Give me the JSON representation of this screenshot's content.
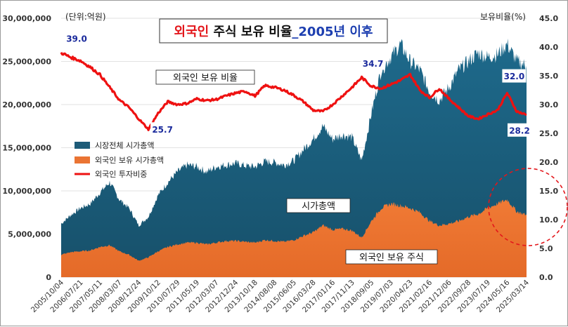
{
  "chart_data": {
    "type": "area",
    "title": {
      "part1": "외국인",
      "part2": " 주식 보유 비율",
      "part3": "_2005년 이후"
    },
    "left_axis_unit": "(단위:억원)",
    "right_axis_unit": "보유비율(%)",
    "ylim_left": [
      0,
      30000000
    ],
    "ylim_right": [
      0,
      45
    ],
    "left_ticks": [
      "0",
      "5,000,000",
      "10,000,000",
      "15,000,000",
      "20,000,000",
      "25,000,000",
      "30,000,000"
    ],
    "right_ticks": [
      "0.0",
      "5.0",
      "10.0",
      "15.0",
      "20.0",
      "25.0",
      "30.0",
      "35.0",
      "40.0",
      "45.0"
    ],
    "x_ticks": [
      "2005/10/04",
      "2006/07/21",
      "2007/05/11",
      "2008/03/07",
      "2008/12/24",
      "2009/10/12",
      "2010/07/29",
      "2011/05/19",
      "2012/03/07",
      "2012/12/24",
      "2013/10/18",
      "2014/08/08",
      "2015/06/05",
      "2016/03/28",
      "2017/01/16",
      "2017/11/13",
      "2018/09/05",
      "2019/07/03",
      "2020/04/23",
      "2021/02/16",
      "2021/12/06",
      "2022/09/28",
      "2023/07/19",
      "2024/05/16",
      "2025/03/14"
    ],
    "legend": [
      {
        "name": "시장전체 시가총액",
        "color": "#1d5b78"
      },
      {
        "name": "외국인 보유 시가총액",
        "color": "#ea7433"
      },
      {
        "name": "외국인 투자비중",
        "color": "#ee1111"
      }
    ],
    "series": [
      {
        "name": "시장전체 시가총액",
        "axis": "left",
        "values": [
          6200000,
          7200000,
          8000000,
          8500000,
          9800000,
          11000000,
          9000000,
          8000000,
          6000000,
          7000000,
          9500000,
          11000000,
          12200000,
          13000000,
          12800000,
          12200000,
          12800000,
          13000000,
          13200000,
          12900000,
          12800000,
          13400000,
          13300000,
          13000000,
          13500000,
          14800000,
          16000000,
          17500000,
          16000000,
          16500000,
          16200000,
          13500000,
          19000000,
          24000000,
          25500000,
          27000000,
          25000000,
          24000000,
          21500000,
          20500000,
          22000000,
          24000000,
          25000000,
          26000000,
          25500000,
          25800000,
          27000000,
          25000000,
          24500000
        ]
      },
      {
        "name": "외국인 보유 시가총액",
        "axis": "left",
        "values": [
          2600000,
          2900000,
          3000000,
          3100000,
          3500000,
          3700000,
          3000000,
          2600000,
          1900000,
          2300000,
          3000000,
          3500000,
          3800000,
          4000000,
          4000000,
          3800000,
          4000000,
          4200000,
          4200000,
          4100000,
          4000000,
          4300000,
          4200000,
          4100000,
          4300000,
          4800000,
          5200000,
          6000000,
          5500000,
          5600000,
          5400000,
          4600000,
          6500000,
          8000000,
          8500000,
          8300000,
          8000000,
          7500000,
          6500000,
          6000000,
          6200000,
          6500000,
          7000000,
          7300000,
          8000000,
          8500000,
          9000000,
          7600000,
          7200000
        ]
      },
      {
        "name": "외국인 투자비중",
        "axis": "right",
        "values": [
          39.0,
          38.2,
          37.6,
          36.5,
          35.2,
          33.0,
          30.8,
          29.5,
          27.5,
          25.7,
          28.5,
          30.5,
          30.0,
          30.2,
          31.0,
          30.7,
          30.9,
          31.5,
          32.0,
          32.3,
          31.5,
          33.3,
          33.0,
          32.5,
          31.6,
          30.5,
          29.0,
          28.8,
          30.0,
          31.5,
          33.0,
          34.7,
          33.2,
          32.8,
          33.5,
          34.2,
          35.2,
          32.5,
          31.2,
          32.8,
          31.0,
          29.5,
          28.0,
          27.5,
          28.3,
          29.0,
          32.0,
          28.8,
          28.2
        ]
      }
    ],
    "point_labels": [
      {
        "index": 0,
        "text": "39.0"
      },
      {
        "index": 9,
        "text": "25.7"
      },
      {
        "index": 31,
        "text": "34.7"
      },
      {
        "index": 46,
        "text": "32.0"
      },
      {
        "index": 48,
        "text": "28.2"
      }
    ],
    "annotations": {
      "ratio": "외국인 보유 비율",
      "market_cap": "시가총액",
      "foreign_holding": "외국인 보유 주식"
    }
  }
}
